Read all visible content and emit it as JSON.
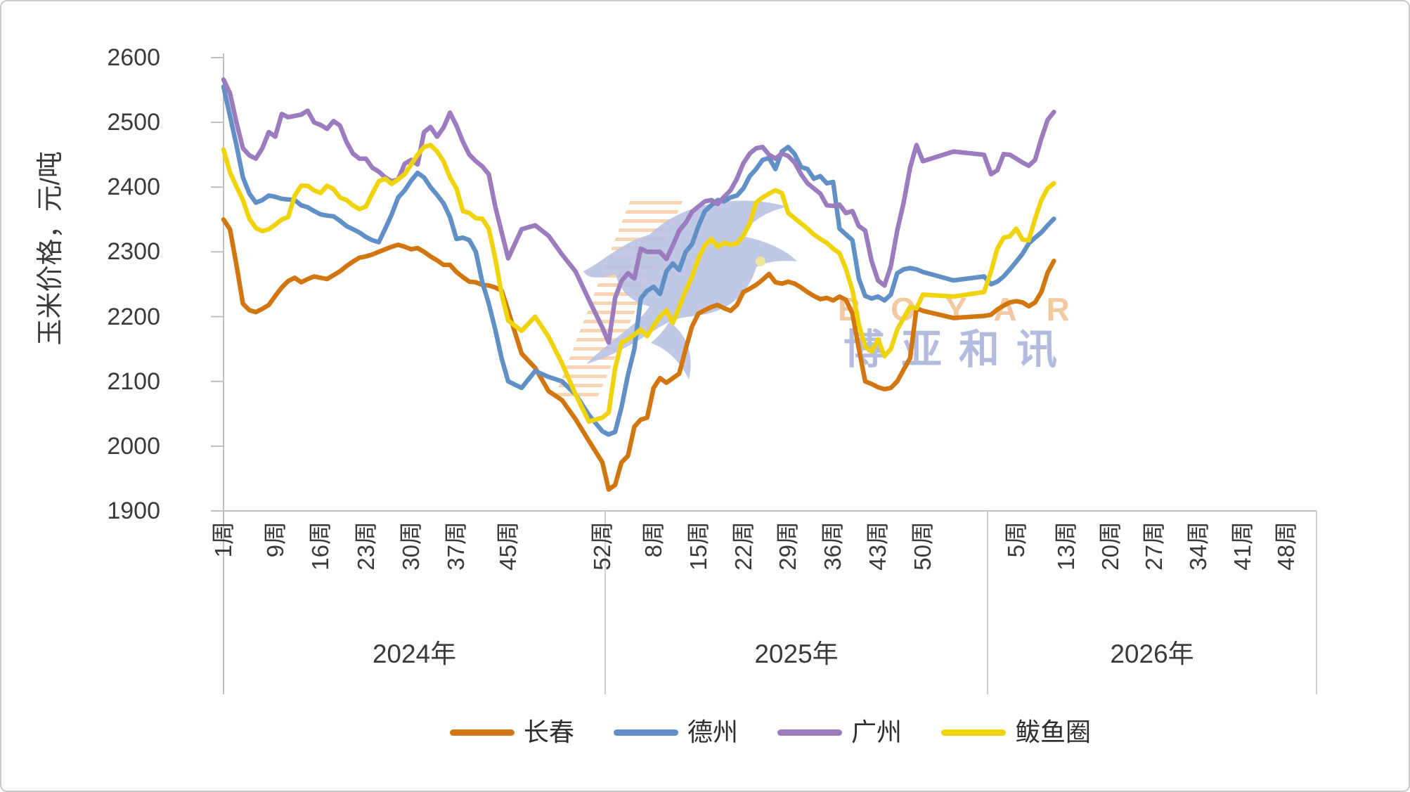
{
  "watermark": {
    "brand_latin": "BOYAR",
    "brand_cn": "博亚和讯"
  },
  "chart_data": {
    "type": "line",
    "ylabel": "玉米价格，元/吨",
    "ylim": [
      1900,
      2600
    ],
    "yticks": [
      2600,
      2500,
      2400,
      2300,
      2200,
      2100,
      2000,
      1900
    ],
    "grid": "off",
    "legend_position": "bottom",
    "tick_suffix": "周",
    "years": [
      {
        "label": "2024年",
        "weeks": 52,
        "tick_weeks": [
          1,
          9,
          16,
          23,
          30,
          37,
          45,
          52
        ]
      },
      {
        "label": "2025年",
        "weeks": 52,
        "tick_weeks": [
          8,
          15,
          22,
          29,
          36,
          43,
          50
        ]
      },
      {
        "label": "2026年",
        "weeks": 52,
        "tick_weeks": [
          5,
          13,
          20,
          27,
          34,
          41,
          48
        ]
      }
    ],
    "series_weeks_per_year": [
      52,
      52,
      11
    ],
    "series": [
      {
        "name": "长春",
        "color": "#d2770f",
        "values": [
          2350,
          2335,
          2280,
          2220,
          2210,
          2207,
          2212,
          2218,
          2232,
          2245,
          2255,
          2260,
          2253,
          2258,
          2262,
          2260,
          2258,
          2264,
          2270,
          2278,
          2285,
          2291,
          2293,
          2296,
          2300,
          2304,
          2308,
          2311,
          2308,
          2304,
          2306,
          2300,
          2293,
          2287,
          2280,
          2280,
          2269,
          2261,
          2254,
          2253,
          2249,
          2248,
          2245,
          2240,
          2209,
          2143,
          2121,
          2085,
          2071,
          2042,
          2008,
          1975,
          1933,
          1940,
          1975,
          1985,
          2030,
          2041,
          2044,
          2090,
          2105,
          2098,
          2105,
          2112,
          2150,
          2185,
          2205,
          2210,
          2215,
          2218,
          2213,
          2209,
          2218,
          2238,
          2243,
          2249,
          2257,
          2266,
          2253,
          2251,
          2254,
          2251,
          2245,
          2238,
          2232,
          2227,
          2229,
          2225,
          2231,
          2226,
          2205,
          2151,
          2100,
          2096,
          2091,
          2088,
          2090,
          2100,
          2118,
          2136,
          2213,
          2209,
          2198,
          2201,
          2203,
          2211,
          2217,
          2222,
          2224,
          2222,
          2216,
          2222,
          2238,
          2268,
          2286
        ]
      },
      {
        "name": "德州",
        "color": "#6190c7",
        "values": [
          2555,
          2510,
          2465,
          2415,
          2390,
          2376,
          2380,
          2387,
          2385,
          2382,
          2381,
          2380,
          2372,
          2369,
          2363,
          2358,
          2356,
          2355,
          2348,
          2340,
          2335,
          2330,
          2323,
          2318,
          2315,
          2336,
          2358,
          2384,
          2395,
          2410,
          2422,
          2415,
          2400,
          2388,
          2375,
          2354,
          2320,
          2322,
          2318,
          2300,
          2253,
          2220,
          2180,
          2135,
          2100,
          2090,
          2116,
          2107,
          2100,
          2080,
          2048,
          2023,
          2018,
          2022,
          2060,
          2110,
          2150,
          2228,
          2240,
          2246,
          2235,
          2270,
          2282,
          2272,
          2300,
          2312,
          2340,
          2363,
          2372,
          2380,
          2378,
          2384,
          2387,
          2398,
          2417,
          2428,
          2442,
          2445,
          2428,
          2455,
          2462,
          2451,
          2431,
          2428,
          2413,
          2417,
          2406,
          2408,
          2336,
          2327,
          2318,
          2259,
          2232,
          2228,
          2231,
          2225,
          2234,
          2267,
          2273,
          2275,
          2273,
          2269,
          2256,
          2262,
          2250,
          2254,
          2262,
          2273,
          2285,
          2297,
          2313,
          2322,
          2330,
          2341,
          2351
        ]
      },
      {
        "name": "广州",
        "color": "#9b7cbe",
        "values": [
          2566,
          2545,
          2500,
          2460,
          2449,
          2444,
          2460,
          2485,
          2478,
          2513,
          2508,
          2510,
          2512,
          2518,
          2500,
          2496,
          2490,
          2502,
          2495,
          2470,
          2452,
          2444,
          2444,
          2430,
          2424,
          2415,
          2409,
          2412,
          2436,
          2442,
          2435,
          2485,
          2493,
          2478,
          2492,
          2515,
          2495,
          2470,
          2450,
          2440,
          2432,
          2420,
          2370,
          2330,
          2290,
          2335,
          2341,
          2325,
          2296,
          2270,
          2226,
          2183,
          2160,
          2229,
          2255,
          2267,
          2259,
          2305,
          2300,
          2300,
          2300,
          2289,
          2310,
          2333,
          2345,
          2362,
          2370,
          2378,
          2380,
          2374,
          2385,
          2395,
          2413,
          2437,
          2452,
          2460,
          2462,
          2450,
          2444,
          2452,
          2448,
          2438,
          2420,
          2406,
          2398,
          2390,
          2372,
          2371,
          2373,
          2360,
          2363,
          2340,
          2333,
          2286,
          2256,
          2248,
          2278,
          2333,
          2376,
          2430,
          2465,
          2440,
          2455,
          2450,
          2420,
          2426,
          2451,
          2450,
          2444,
          2438,
          2433,
          2442,
          2475,
          2504,
          2516
        ]
      },
      {
        "name": "鲅鱼圈",
        "color": "#f0d40b",
        "values": [
          2458,
          2423,
          2401,
          2380,
          2351,
          2337,
          2332,
          2335,
          2342,
          2350,
          2354,
          2387,
          2402,
          2402,
          2395,
          2391,
          2402,
          2397,
          2384,
          2380,
          2372,
          2366,
          2370,
          2390,
          2409,
          2413,
          2405,
          2412,
          2420,
          2435,
          2450,
          2462,
          2465,
          2455,
          2440,
          2415,
          2398,
          2363,
          2360,
          2352,
          2351,
          2336,
          2290,
          2234,
          2194,
          2178,
          2200,
          2169,
          2128,
          2080,
          2038,
          2044,
          2052,
          2120,
          2160,
          2165,
          2172,
          2180,
          2170,
          2186,
          2200,
          2210,
          2190,
          2215,
          2240,
          2262,
          2290,
          2310,
          2320,
          2308,
          2314,
          2311,
          2313,
          2325,
          2344,
          2376,
          2384,
          2390,
          2395,
          2391,
          2360,
          2352,
          2344,
          2336,
          2327,
          2320,
          2314,
          2305,
          2298,
          2274,
          2241,
          2188,
          2154,
          2146,
          2165,
          2139,
          2150,
          2180,
          2198,
          2215,
          2213,
          2234,
          2231,
          2238,
          2270,
          2305,
          2322,
          2324,
          2336,
          2319,
          2318,
          2351,
          2380,
          2398,
          2406
        ]
      }
    ],
    "colors": {
      "axis": "#bfbfbf",
      "separator": "#d2d2d2",
      "text": "#3a3a3a",
      "watermark_blue": "#b9c2e2",
      "watermark_orange": "#f6cda4"
    }
  }
}
